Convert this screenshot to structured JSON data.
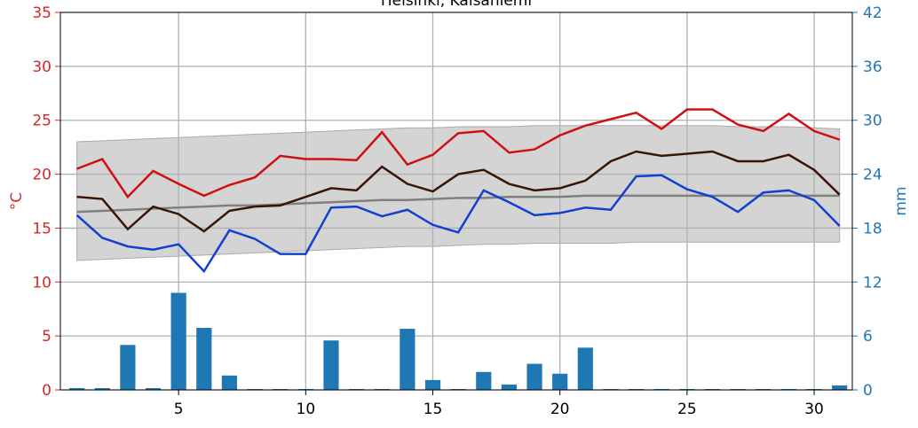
{
  "chart_data": {
    "type": "line",
    "title": "Helsinki, Kaisaniemi",
    "ylabel": "°C",
    "y2label": "mm",
    "x": [
      1,
      2,
      3,
      4,
      5,
      6,
      7,
      8,
      9,
      10,
      11,
      12,
      13,
      14,
      15,
      16,
      17,
      18,
      19,
      20,
      21,
      22,
      23,
      24,
      25,
      26,
      27,
      28,
      29,
      30,
      31
    ],
    "xlim": [
      0.35,
      31.5
    ],
    "xticks": [
      5,
      10,
      15,
      20,
      25,
      30
    ],
    "ylim": [
      0,
      35
    ],
    "yticks": [
      0,
      5,
      10,
      15,
      20,
      25,
      30,
      35
    ],
    "y2lim": [
      0,
      42
    ],
    "y2ticks": [
      0,
      6,
      12,
      18,
      24,
      30,
      36,
      42
    ],
    "grid": true,
    "left_axis_color": "#d62728",
    "right_axis_color": "#1f77b4",
    "band": {
      "color": "#d4d4d4",
      "lower": [
        12.0,
        12.1,
        12.2,
        12.3,
        12.4,
        12.5,
        12.6,
        12.7,
        12.8,
        12.9,
        13.0,
        13.1,
        13.2,
        13.3,
        13.3,
        13.4,
        13.5,
        13.5,
        13.6,
        13.6,
        13.6,
        13.6,
        13.7,
        13.7,
        13.7,
        13.7,
        13.7,
        13.7,
        13.7,
        13.7,
        13.7
      ],
      "upper": [
        23.0,
        23.1,
        23.2,
        23.3,
        23.4,
        23.5,
        23.6,
        23.7,
        23.8,
        23.9,
        24.0,
        24.1,
        24.2,
        24.3,
        24.3,
        24.4,
        24.4,
        24.4,
        24.5,
        24.5,
        24.5,
        24.5,
        24.5,
        24.5,
        24.5,
        24.5,
        24.4,
        24.4,
        24.4,
        24.3,
        24.2
      ]
    },
    "bars": {
      "color": "#1f77b4",
      "axis": "y2",
      "values": [
        0.2,
        0.2,
        5.0,
        0.2,
        10.8,
        6.9,
        1.6,
        0.1,
        0.1,
        0.1,
        5.5,
        0.1,
        0.1,
        6.8,
        1.1,
        0.1,
        2.0,
        0.6,
        2.9,
        1.8,
        4.7,
        0.1,
        0.1,
        0.1,
        0.1,
        0.1,
        0.1,
        0.1,
        0.1,
        0.1,
        0.5
      ]
    },
    "series": [
      {
        "color": "#808080",
        "values": [
          16.5,
          16.6,
          16.7,
          16.8,
          16.9,
          17.0,
          17.1,
          17.1,
          17.2,
          17.3,
          17.4,
          17.5,
          17.6,
          17.6,
          17.7,
          17.8,
          17.8,
          17.9,
          17.9,
          17.9,
          18.0,
          18.0,
          18.0,
          18.0,
          18.0,
          18.0,
          18.0,
          18.0,
          18.0,
          18.0,
          18.0
        ]
      },
      {
        "color": "#d01010",
        "values": [
          20.5,
          21.4,
          17.9,
          20.3,
          19.1,
          18.0,
          19.0,
          19.7,
          21.7,
          21.4,
          21.4,
          21.3,
          23.9,
          20.9,
          21.8,
          23.8,
          24.0,
          22.0,
          22.3,
          23.6,
          24.5,
          25.1,
          25.7,
          24.2,
          26.0,
          26.0,
          24.6,
          24.0,
          25.6,
          24.0,
          23.2
        ]
      },
      {
        "color": "#3a1505",
        "values": [
          17.9,
          17.7,
          14.9,
          17.0,
          16.3,
          14.7,
          16.6,
          17.0,
          17.1,
          17.9,
          18.7,
          18.5,
          20.7,
          19.1,
          18.4,
          20.0,
          20.4,
          19.1,
          18.5,
          18.7,
          19.4,
          21.2,
          22.1,
          21.7,
          21.9,
          22.1,
          21.2,
          21.2,
          21.8,
          20.4,
          18.1
        ]
      },
      {
        "color": "#1040d0",
        "values": [
          16.2,
          14.1,
          13.3,
          13.0,
          13.5,
          11.0,
          14.8,
          14.0,
          12.6,
          12.6,
          16.9,
          17.0,
          16.1,
          16.7,
          15.3,
          14.6,
          18.5,
          17.4,
          16.2,
          16.4,
          16.9,
          16.7,
          19.8,
          19.9,
          18.6,
          17.9,
          16.5,
          18.3,
          18.5,
          17.6,
          15.2
        ]
      }
    ]
  }
}
